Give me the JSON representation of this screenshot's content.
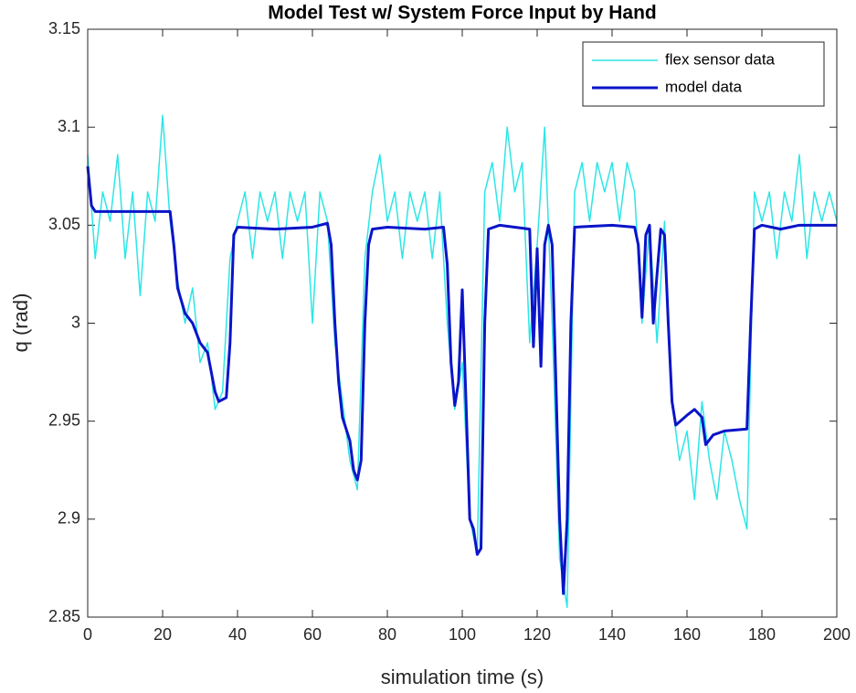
{
  "chart_data": {
    "type": "line",
    "title": "Model Test w/ System Force Input by Hand",
    "x_label": "simulation time (s)",
    "y_label": "q (rad)",
    "xlim": [
      0,
      200
    ],
    "xticks": [
      0,
      20,
      40,
      60,
      80,
      100,
      120,
      140,
      160,
      180,
      200
    ],
    "ylim": [
      2.85,
      3.15
    ],
    "yticks": [
      2.85,
      2.9,
      2.95,
      3,
      3.05,
      3.1,
      3.15
    ],
    "legend": "upper right",
    "series": [
      {
        "name": "flex sensor data",
        "color": "#2ce6e6",
        "width": 1.5,
        "x": [
          0,
          2,
          4,
          6,
          8,
          10,
          12,
          14,
          16,
          18,
          20,
          22,
          24,
          26,
          28,
          30,
          32,
          34,
          36,
          38,
          40,
          42,
          44,
          46,
          48,
          50,
          52,
          54,
          56,
          58,
          60,
          62,
          64,
          66,
          68,
          70,
          72,
          74,
          76,
          78,
          80,
          82,
          84,
          86,
          88,
          90,
          92,
          94,
          96,
          98,
          100,
          102,
          104,
          106,
          108,
          110,
          112,
          114,
          116,
          118,
          120,
          122,
          124,
          126,
          128,
          130,
          132,
          134,
          136,
          138,
          140,
          142,
          144,
          146,
          148,
          150,
          152,
          154,
          156,
          158,
          160,
          162,
          164,
          166,
          168,
          170,
          172,
          174,
          176,
          178,
          180,
          182,
          184,
          186,
          188,
          190,
          192,
          194,
          196,
          198,
          200
        ],
        "values": [
          3.086,
          3.033,
          3.067,
          3.052,
          3.086,
          3.033,
          3.067,
          3.014,
          3.067,
          3.052,
          3.106,
          3.052,
          3.022,
          3.0,
          3.018,
          2.98,
          2.99,
          2.956,
          2.965,
          3.033,
          3.052,
          3.067,
          3.033,
          3.067,
          3.052,
          3.067,
          3.033,
          3.067,
          3.052,
          3.067,
          3.0,
          3.067,
          3.052,
          2.99,
          2.96,
          2.93,
          2.915,
          3.033,
          3.067,
          3.086,
          3.052,
          3.067,
          3.033,
          3.067,
          3.052,
          3.067,
          3.033,
          3.067,
          3.0,
          2.956,
          2.98,
          2.9,
          2.882,
          3.067,
          3.082,
          3.052,
          3.1,
          3.067,
          3.082,
          2.99,
          3.04,
          3.1,
          3.0,
          2.88,
          2.855,
          3.067,
          3.082,
          3.052,
          3.082,
          3.067,
          3.082,
          3.052,
          3.082,
          3.067,
          3.0,
          3.05,
          2.99,
          3.052,
          2.96,
          2.93,
          2.945,
          2.91,
          2.96,
          2.93,
          2.91,
          2.945,
          2.93,
          2.91,
          2.895,
          3.067,
          3.052,
          3.067,
          3.033,
          3.067,
          3.052,
          3.086,
          3.033,
          3.067,
          3.052,
          3.067,
          3.052
        ]
      },
      {
        "name": "model data",
        "color": "#0a14c8",
        "width": 3,
        "x": [
          0,
          1,
          2,
          10,
          22,
          23,
          24,
          26,
          28,
          30,
          32,
          34,
          35,
          37,
          38,
          39,
          40,
          50,
          60,
          64,
          65,
          66,
          67,
          68,
          70,
          71,
          72,
          73,
          74,
          75,
          76,
          80,
          90,
          95,
          96,
          97,
          98,
          99,
          100,
          101,
          102,
          103,
          104,
          105,
          106,
          107,
          110,
          118,
          119,
          120,
          121,
          122,
          123,
          124,
          125,
          126,
          127,
          128,
          129,
          130,
          140,
          146,
          147,
          148,
          149,
          150,
          151,
          152,
          153,
          154,
          155,
          156,
          157,
          160,
          162,
          164,
          165,
          167,
          170,
          176,
          177,
          178,
          180,
          185,
          190,
          200
        ],
        "values": [
          3.08,
          3.06,
          3.057,
          3.057,
          3.057,
          3.04,
          3.018,
          3.005,
          3.0,
          2.99,
          2.985,
          2.965,
          2.96,
          2.962,
          2.99,
          3.045,
          3.049,
          3.048,
          3.049,
          3.051,
          3.04,
          3.0,
          2.97,
          2.952,
          2.94,
          2.925,
          2.92,
          2.93,
          3.0,
          3.04,
          3.048,
          3.049,
          3.048,
          3.049,
          3.03,
          2.98,
          2.958,
          2.97,
          3.017,
          2.96,
          2.9,
          2.895,
          2.882,
          2.885,
          3.0,
          3.048,
          3.05,
          3.048,
          2.988,
          3.038,
          2.978,
          3.04,
          3.05,
          3.04,
          2.97,
          2.9,
          2.862,
          2.9,
          3.0,
          3.049,
          3.05,
          3.049,
          3.04,
          3.003,
          3.045,
          3.05,
          3.0,
          3.025,
          3.048,
          3.045,
          3.0,
          2.96,
          2.948,
          2.953,
          2.956,
          2.952,
          2.938,
          2.943,
          2.945,
          2.946,
          3.0,
          3.048,
          3.05,
          3.048,
          3.05,
          3.05
        ]
      }
    ]
  }
}
